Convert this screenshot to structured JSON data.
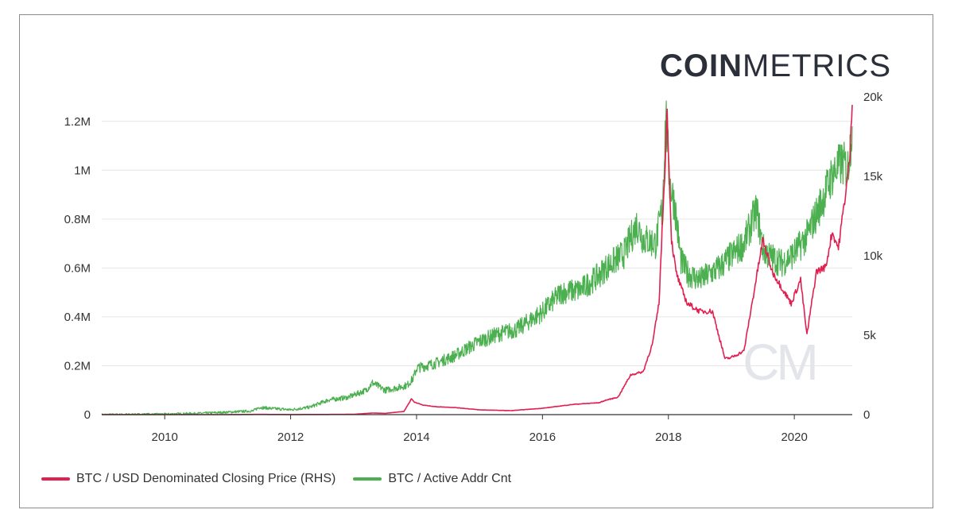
{
  "brand": {
    "bold": "COIN",
    "light": "METRICS",
    "watermark": "CM"
  },
  "colors": {
    "price": "#e0204f",
    "active": "#4caf50",
    "grid": "#e6e6e6",
    "axis": "#333333"
  },
  "legend": [
    {
      "label": "BTC / USD Denominated Closing Price (RHS)",
      "color": "#e0204f"
    },
    {
      "label": "BTC / Active Addr Cnt",
      "color": "#4caf50"
    }
  ],
  "chart_data": {
    "type": "line",
    "title": "",
    "grid": true,
    "legend_position": "bottom-left",
    "x_axis": {
      "type": "time",
      "range": [
        2009.0,
        2020.92
      ],
      "ticks": [
        "2010",
        "2012",
        "2014",
        "2016",
        "2018",
        "2020"
      ]
    },
    "y_left": {
      "range": [
        0,
        1300000
      ],
      "tick_values": [
        0,
        200000,
        400000,
        600000,
        800000,
        1000000,
        1200000
      ],
      "tick_labels": [
        "0",
        "0.2M",
        "0.4M",
        "0.6M",
        "0.8M",
        "1M",
        "1.2M"
      ]
    },
    "y_right": {
      "range": [
        0,
        20000
      ],
      "tick_values": [
        0,
        5000,
        10000,
        15000,
        20000
      ],
      "tick_labels": [
        "0",
        "5k",
        "10k",
        "15k",
        "20k"
      ]
    },
    "series": [
      {
        "name": "BTC / Active Addr Cnt",
        "axis": "left",
        "x": [
          2009.0,
          2010.0,
          2010.5,
          2011.0,
          2011.4,
          2011.5,
          2011.7,
          2012.0,
          2012.3,
          2012.6,
          2012.9,
          2013.2,
          2013.3,
          2013.5,
          2013.7,
          2013.85,
          2013.95,
          2014.0,
          2014.3,
          2014.6,
          2015.0,
          2015.3,
          2015.6,
          2016.0,
          2016.3,
          2016.6,
          2016.9,
          2017.0,
          2017.3,
          2017.5,
          2017.6,
          2017.8,
          2017.9,
          2017.96,
          2018.02,
          2018.1,
          2018.2,
          2018.3,
          2018.5,
          2018.8,
          2019.0,
          2019.2,
          2019.4,
          2019.5,
          2019.6,
          2019.8,
          2020.0,
          2020.2,
          2020.4,
          2020.6,
          2020.75,
          2020.85,
          2020.92
        ],
        "values": [
          0,
          2000,
          5000,
          10000,
          15000,
          30000,
          25000,
          20000,
          30000,
          60000,
          70000,
          100000,
          130000,
          100000,
          110000,
          120000,
          150000,
          190000,
          210000,
          240000,
          300000,
          330000,
          350000,
          420000,
          500000,
          510000,
          570000,
          600000,
          660000,
          780000,
          720000,
          700000,
          840000,
          1230000,
          950000,
          860000,
          630000,
          580000,
          550000,
          600000,
          650000,
          700000,
          840000,
          680000,
          650000,
          620000,
          660000,
          730000,
          850000,
          980000,
          1030000,
          1010000,
          1180000
        ]
      },
      {
        "name": "BTC / USD Denominated Closing Price (RHS)",
        "axis": "right",
        "x": [
          2009.0,
          2010.5,
          2011.0,
          2011.5,
          2012.0,
          2012.5,
          2013.0,
          2013.3,
          2013.5,
          2013.8,
          2013.92,
          2013.96,
          2014.1,
          2014.3,
          2014.6,
          2015.0,
          2015.5,
          2016.0,
          2016.5,
          2016.9,
          2017.0,
          2017.2,
          2017.4,
          2017.6,
          2017.75,
          2017.85,
          2017.95,
          2017.98,
          2018.05,
          2018.12,
          2018.2,
          2018.3,
          2018.5,
          2018.7,
          2018.9,
          2019.0,
          2019.2,
          2019.35,
          2019.5,
          2019.65,
          2019.8,
          2019.95,
          2020.1,
          2020.2,
          2020.35,
          2020.5,
          2020.6,
          2020.7,
          2020.8,
          2020.88,
          2020.92
        ],
        "values": [
          0,
          0,
          2,
          15,
          6,
          10,
          20,
          100,
          80,
          200,
          1000,
          800,
          600,
          500,
          450,
          300,
          250,
          400,
          650,
          750,
          900,
          1100,
          2500,
          2700,
          4500,
          7000,
          16000,
          19000,
          11000,
          9000,
          8000,
          7000,
          6500,
          6500,
          3500,
          3600,
          4000,
          7500,
          11000,
          9000,
          8000,
          7000,
          8500,
          5000,
          9000,
          9300,
          11500,
          10500,
          13500,
          16000,
          19500
        ]
      }
    ]
  }
}
